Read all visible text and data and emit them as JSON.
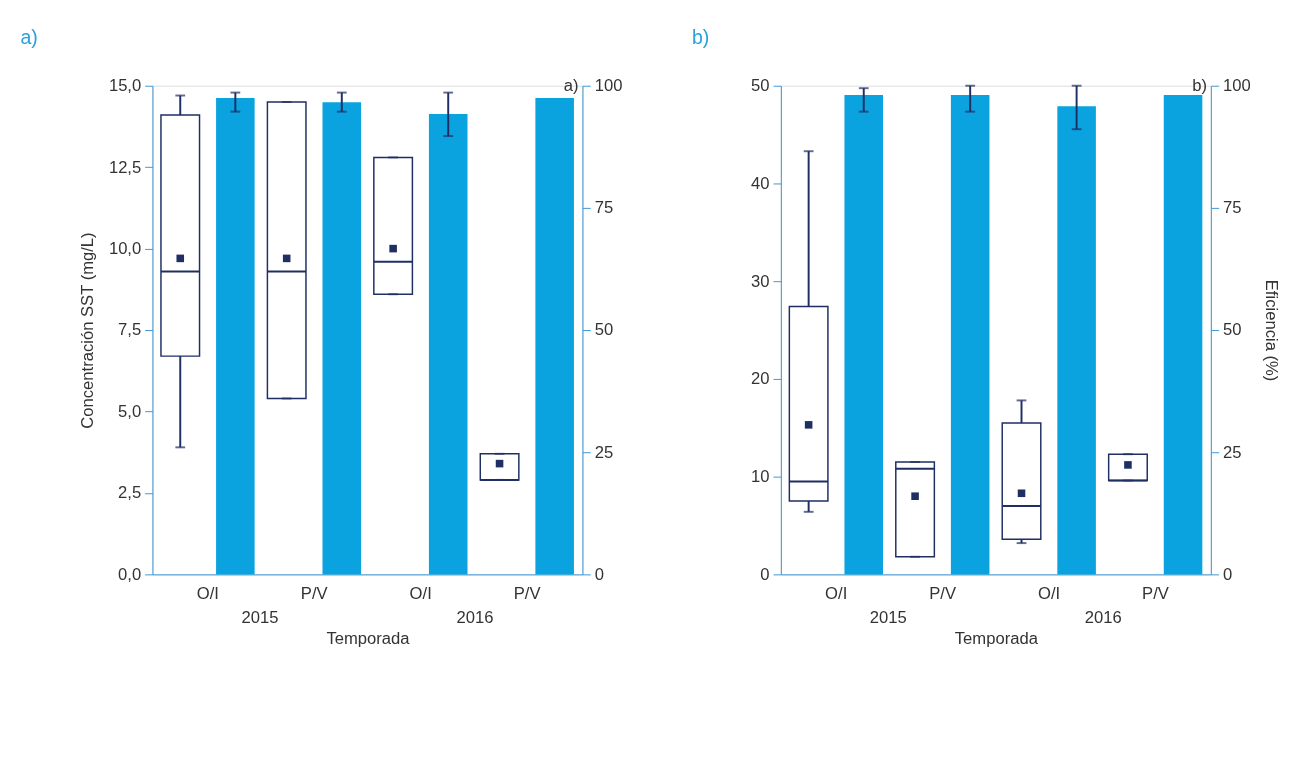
{
  "chart_data": [
    {
      "type": "box",
      "title": "a)",
      "xlabel": "Temporada",
      "ylabel": "Concentración SST (mg/L)",
      "categories": [
        "O/I",
        "P/V",
        "O/I",
        "P/V"
      ],
      "grid": false,
      "ylim": [
        0,
        15
      ],
      "yticks": [
        {
          "value": 0,
          "label": "0,0"
        },
        {
          "value": 2.5,
          "label": "2,5"
        },
        {
          "value": 5,
          "label": "5,0"
        },
        {
          "value": 7.5,
          "label": "7,5"
        },
        {
          "value": 10,
          "label": "10,0"
        },
        {
          "value": 12.5,
          "label": "12,5"
        },
        {
          "value": 15,
          "label": "15,0"
        }
      ],
      "y2lim": [
        0,
        100
      ],
      "y2ticks": [
        0,
        25,
        50,
        75,
        100
      ],
      "annotations": [
        "a)",
        "2015",
        "2016"
      ],
      "series": [
        {
          "color": "#1f2e63",
          "boxes": [
            {
              "low": 3.9,
              "q1": 6.7,
              "median": 9.3,
              "q3": 14.1,
              "high": 14.7,
              "mean": 9.7
            },
            {
              "low": 5.4,
              "q1": 5.4,
              "median": 9.3,
              "q3": 14.5,
              "high": 14.5,
              "mean": 9.7
            },
            {
              "low": 8.6,
              "q1": 8.6,
              "median": 9.6,
              "q3": 12.8,
              "high": 12.8,
              "mean": 10.0
            },
            {
              "low": 2.9,
              "q1": 2.9,
              "median": 2.9,
              "q3": 3.7,
              "high": 3.7,
              "mean": 3.4
            }
          ]
        },
        {
          "type": "bar",
          "axis": "y2",
          "color": "#0aa3e0",
          "values": [
            97.5,
            96.6,
            94.2,
            97.5
          ],
          "errors": [
            [
              94.7,
              98.6
            ],
            [
              94.7,
              98.6
            ],
            [
              89.7,
              98.6
            ],
            null
          ]
        }
      ]
    },
    {
      "type": "box",
      "title": "b)",
      "xlabel": "Temporada",
      "y2label": "Eficiencia (%)",
      "categories": [
        "O/I",
        "P/V",
        "O/I",
        "P/V"
      ],
      "grid": false,
      "ylim": [
        0,
        50
      ],
      "yticks": [
        0,
        10,
        20,
        30,
        40,
        50
      ],
      "y2lim": [
        0,
        100
      ],
      "y2ticks": [
        0,
        25,
        50,
        75,
        100
      ],
      "annotations": [
        "b)",
        "2015",
        "2016"
      ],
      "series": [
        {
          "color": "#1f2e63",
          "boxes": [
            {
              "low": 6.4,
              "q1": 7.5,
              "median": 9.5,
              "q3": 27.4,
              "high": 43.3,
              "mean": 15.3
            },
            {
              "low": 1.8,
              "q1": 1.8,
              "median": 10.8,
              "q3": 11.5,
              "high": 11.5,
              "mean": 8.0
            },
            {
              "low": 3.2,
              "q1": 3.6,
              "median": 7.0,
              "q3": 15.5,
              "high": 17.8,
              "mean": 8.3
            },
            {
              "low": 9.6,
              "q1": 9.6,
              "median": 9.6,
              "q3": 12.3,
              "high": 12.3,
              "mean": 11.2
            }
          ]
        },
        {
          "type": "bar",
          "axis": "y2",
          "color": "#0aa3e0",
          "values": [
            98.1,
            98.1,
            95.8,
            98.1
          ],
          "errors": [
            [
              94.7,
              99.5
            ],
            [
              94.7,
              100
            ],
            [
              91.1,
              100
            ],
            null
          ]
        }
      ]
    }
  ]
}
